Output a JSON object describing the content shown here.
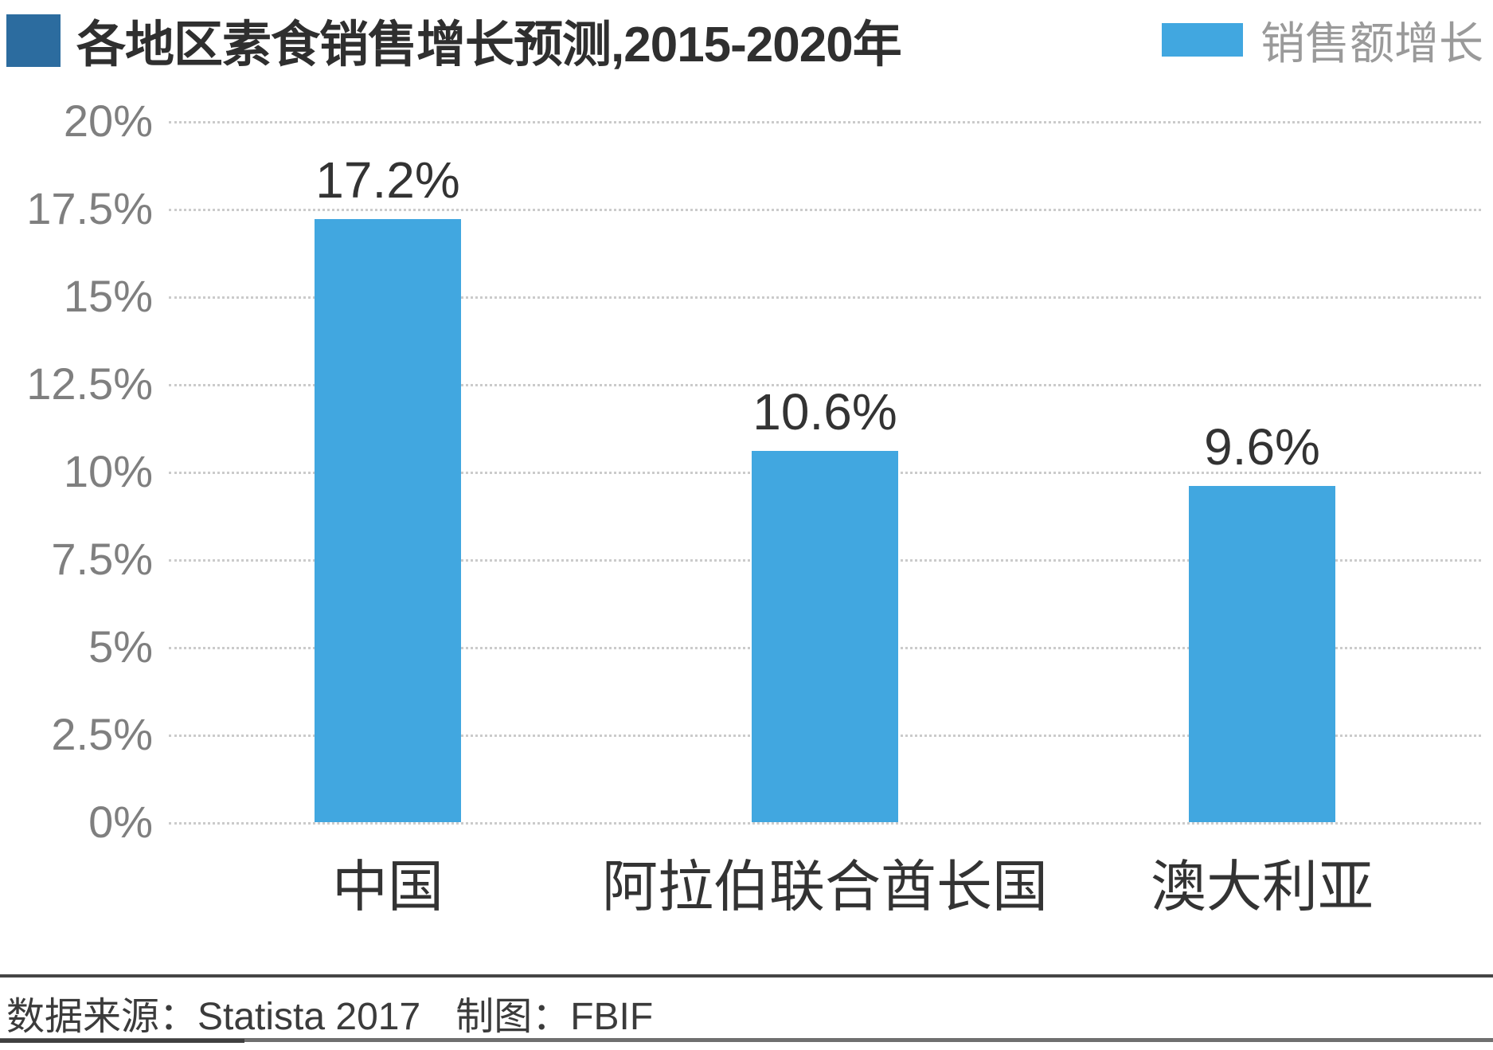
{
  "title": {
    "text": "各地区素食销售增长预测,2015-2020年",
    "marker_color": "#2c6c9f"
  },
  "legend": {
    "label": "销售额增长",
    "swatch_color": "#41a7e0",
    "position": "top-right"
  },
  "chart_data": {
    "type": "bar",
    "title": "各地区素食销售增长预测,2015-2020年",
    "categories": [
      "中国",
      "阿拉伯联合酋长国",
      "澳大利亚"
    ],
    "values": [
      17.2,
      10.6,
      9.6
    ],
    "value_labels": [
      "17.2%",
      "10.6%",
      "9.6%"
    ],
    "series": [
      {
        "name": "销售额增长",
        "values": [
          17.2,
          10.6,
          9.6
        ]
      }
    ],
    "xlabel": "",
    "ylabel": "",
    "ylim": [
      0,
      20
    ],
    "ytick_labels": [
      "20%",
      "17.5%",
      "15%",
      "12.5%",
      "10%",
      "7.5%",
      "5%",
      "2.5%",
      "0%"
    ],
    "grid": "horizontal-dotted",
    "gridline_color": "#cbcbcb",
    "legend_position": "top-right",
    "bar_color": "#41a7e0",
    "axis_text_color": "#7f7f7f",
    "label_text_color": "#333333"
  },
  "footer": {
    "source": "数据来源：Statista 2017",
    "credit": "制图：FBIF"
  }
}
